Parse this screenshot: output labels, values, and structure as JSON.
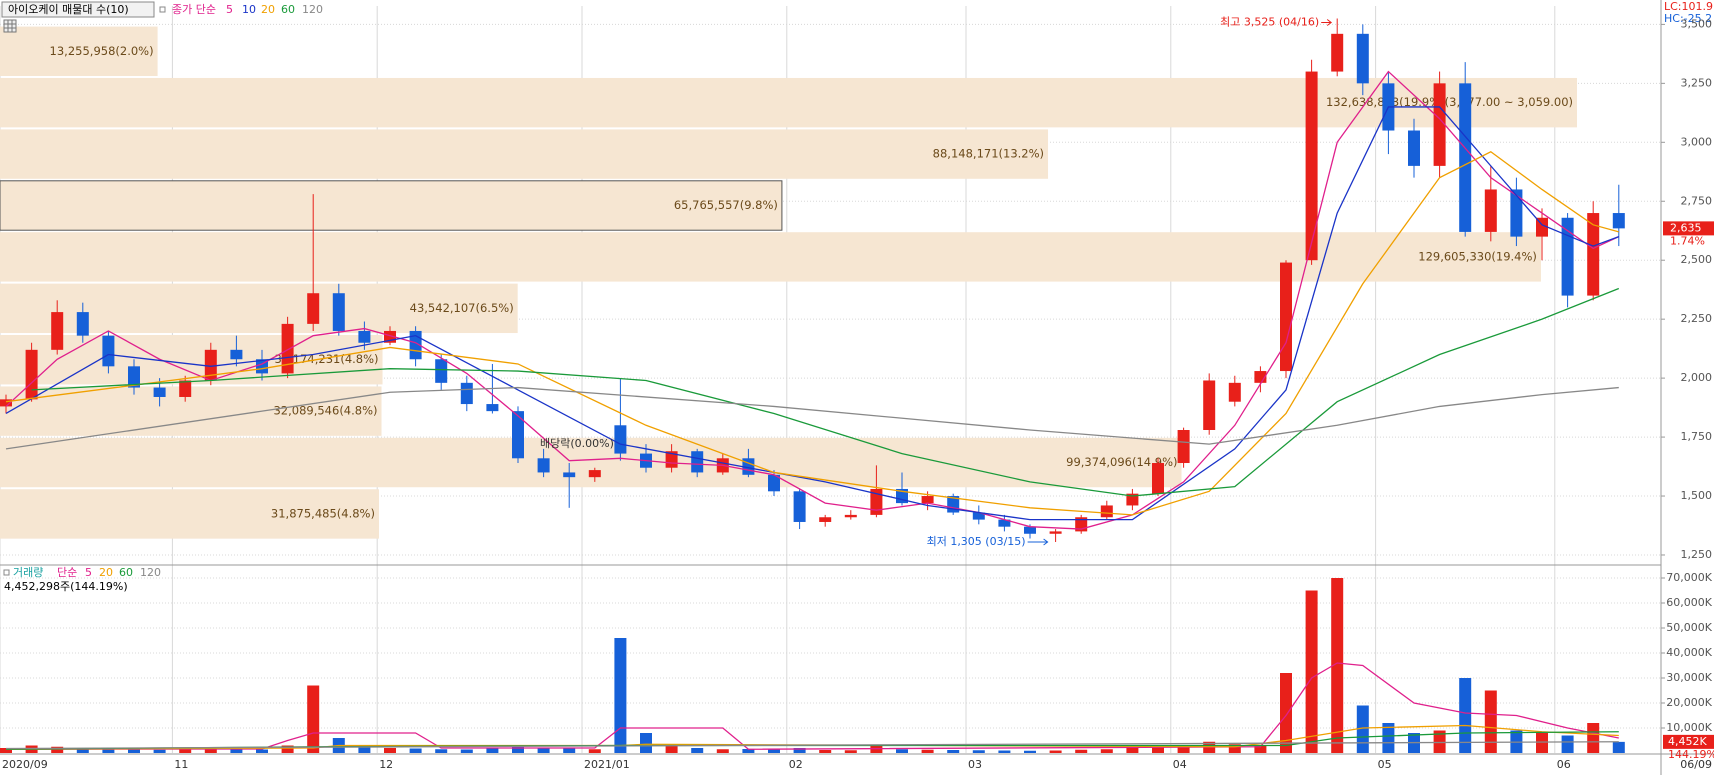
{
  "chart_data": [
    {
      "type": "candlestick",
      "title": "아이오케이 매물대 수(10)",
      "legend_title": "종가 단순",
      "up_color": "#e8201a",
      "down_color": "#1660d8",
      "ylim": [
        1216,
        3578
      ],
      "yticks": [
        {
          "value": 1250,
          "label": "1,250"
        },
        {
          "value": 1500,
          "label": "1,500"
        },
        {
          "value": 1750,
          "label": "1,750"
        },
        {
          "value": 2000,
          "label": "2,000"
        },
        {
          "value": 2250,
          "label": "2,250"
        },
        {
          "value": 2500,
          "label": "2,500"
        },
        {
          "value": 2750,
          "label": "2,750"
        },
        {
          "value": 3000,
          "label": "3,000"
        },
        {
          "value": 3250,
          "label": "3,250"
        },
        {
          "value": 3500,
          "label": "3,500"
        }
      ],
      "grid": true,
      "ohlc": [
        [
          1880,
          1930,
          1850,
          1910
        ],
        [
          1910,
          2150,
          1900,
          2120
        ],
        [
          2120,
          2330,
          2100,
          2280
        ],
        [
          2280,
          2320,
          2150,
          2180
        ],
        [
          2180,
          2200,
          2020,
          2050
        ],
        [
          2050,
          2080,
          1930,
          1960
        ],
        [
          1960,
          2000,
          1880,
          1920
        ],
        [
          1920,
          2010,
          1900,
          1990
        ],
        [
          1990,
          2150,
          1970,
          2120
        ],
        [
          2120,
          2180,
          2050,
          2080
        ],
        [
          2080,
          2120,
          1990,
          2020
        ],
        [
          2020,
          2260,
          2000,
          2230
        ],
        [
          2230,
          2780,
          2200,
          2360
        ],
        [
          2360,
          2400,
          2180,
          2200
        ],
        [
          2200,
          2240,
          2120,
          2150
        ],
        [
          2150,
          2220,
          2140,
          2200
        ],
        [
          2200,
          2220,
          2050,
          2080
        ],
        [
          2080,
          2100,
          1950,
          1980
        ],
        [
          1980,
          2010,
          1860,
          1890
        ],
        [
          1890,
          2060,
          1850,
          1860
        ],
        [
          1860,
          1880,
          1640,
          1660
        ],
        [
          1660,
          1700,
          1580,
          1600
        ],
        [
          1600,
          1640,
          1450,
          1580
        ],
        [
          1580,
          1620,
          1560,
          1610
        ],
        [
          1800,
          2000,
          1650,
          1680
        ],
        [
          1680,
          1720,
          1600,
          1620
        ],
        [
          1620,
          1720,
          1600,
          1690
        ],
        [
          1690,
          1700,
          1580,
          1600
        ],
        [
          1600,
          1680,
          1590,
          1660
        ],
        [
          1660,
          1700,
          1580,
          1590
        ],
        [
          1590,
          1610,
          1500,
          1520
        ],
        [
          1520,
          1530,
          1360,
          1390
        ],
        [
          1390,
          1420,
          1370,
          1410
        ],
        [
          1410,
          1440,
          1400,
          1420
        ],
        [
          1420,
          1630,
          1410,
          1530
        ],
        [
          1530,
          1600,
          1460,
          1470
        ],
        [
          1470,
          1520,
          1440,
          1500
        ],
        [
          1500,
          1510,
          1420,
          1430
        ],
        [
          1430,
          1460,
          1380,
          1400
        ],
        [
          1400,
          1420,
          1350,
          1370
        ],
        [
          1370,
          1380,
          1320,
          1340
        ],
        [
          1340,
          1360,
          1305,
          1350
        ],
        [
          1350,
          1420,
          1340,
          1410
        ],
        [
          1410,
          1480,
          1400,
          1460
        ],
        [
          1460,
          1530,
          1440,
          1510
        ],
        [
          1510,
          1660,
          1500,
          1640
        ],
        [
          1640,
          1790,
          1620,
          1780
        ],
        [
          1780,
          2020,
          1760,
          1990
        ],
        [
          1900,
          2010,
          1880,
          1980
        ],
        [
          1980,
          2050,
          1940,
          2030
        ],
        [
          2030,
          2500,
          2000,
          2490
        ],
        [
          2500,
          3350,
          2480,
          3300
        ],
        [
          3300,
          3525,
          3280,
          3460
        ],
        [
          3460,
          3500,
          3200,
          3250
        ],
        [
          3250,
          3300,
          2950,
          3050
        ],
        [
          3050,
          3100,
          2850,
          2900
        ],
        [
          2900,
          3300,
          2850,
          3250
        ],
        [
          3250,
          3340,
          2600,
          2620
        ],
        [
          2620,
          2900,
          2580,
          2800
        ],
        [
          2800,
          2850,
          2560,
          2600
        ],
        [
          2600,
          2720,
          2500,
          2680
        ],
        [
          2680,
          2700,
          2300,
          2350
        ],
        [
          2350,
          2750,
          2330,
          2700
        ],
        [
          2700,
          2820,
          2560,
          2635
        ]
      ],
      "series": [
        {
          "name": "5",
          "color": "#e0208c",
          "x": [
            0,
            2,
            4,
            6,
            8,
            10,
            12,
            14,
            16,
            18,
            20,
            22,
            24,
            26,
            28,
            30,
            32,
            34,
            36,
            38,
            40,
            42,
            44,
            46,
            48,
            50,
            52,
            54,
            56,
            58,
            60,
            62,
            63
          ],
          "values": [
            1880,
            2080,
            2200,
            2080,
            1990,
            2060,
            2180,
            2210,
            2150,
            2020,
            1840,
            1650,
            1660,
            1640,
            1630,
            1590,
            1470,
            1440,
            1470,
            1430,
            1370,
            1360,
            1420,
            1560,
            1800,
            2150,
            3000,
            3300,
            3100,
            2850,
            2700,
            2550,
            2600
          ]
        },
        {
          "name": "10",
          "color": "#1a34c8",
          "x": [
            0,
            4,
            8,
            12,
            16,
            20,
            24,
            28,
            32,
            36,
            40,
            44,
            48,
            50,
            52,
            54,
            56,
            58,
            60,
            62,
            63
          ],
          "values": [
            1850,
            2100,
            2050,
            2100,
            2180,
            1950,
            1720,
            1640,
            1560,
            1460,
            1400,
            1400,
            1700,
            1950,
            2700,
            3150,
            3150,
            2900,
            2650,
            2560,
            2600
          ]
        },
        {
          "name": "20",
          "color": "#f0a000",
          "x": [
            0,
            5,
            10,
            15,
            20,
            25,
            30,
            35,
            40,
            44,
            47,
            50,
            53,
            56,
            58,
            60,
            62,
            63
          ],
          "values": [
            1900,
            1970,
            2040,
            2130,
            2060,
            1800,
            1600,
            1520,
            1450,
            1420,
            1520,
            1850,
            2400,
            2850,
            2960,
            2800,
            2650,
            2620
          ]
        },
        {
          "name": "60",
          "color": "#1a9a3a",
          "x": [
            1,
            8,
            15,
            20,
            25,
            30,
            35,
            40,
            44,
            48,
            52,
            56,
            60,
            63
          ],
          "values": [
            1950,
            1990,
            2040,
            2030,
            1990,
            1850,
            1680,
            1560,
            1500,
            1540,
            1900,
            2100,
            2250,
            2380
          ]
        },
        {
          "name": "120",
          "color": "#888888",
          "x": [
            0,
            10,
            15,
            20,
            30,
            40,
            47,
            52,
            56,
            60,
            63
          ],
          "values": [
            1700,
            1860,
            1940,
            1960,
            1880,
            1780,
            1720,
            1800,
            1880,
            1930,
            1960
          ]
        }
      ],
      "volume_profile": [
        {
          "high": 3495,
          "low": 3277,
          "volume": 13255958,
          "label": "13,255,958(2.0%)"
        },
        {
          "high": 3277,
          "low": 3059,
          "volume": 132638813,
          "label": "132,638,813(19.9%)(3,277.00 ~ 3,059.00)"
        },
        {
          "high": 3059,
          "low": 2841,
          "volume": 88148171,
          "label": "88,148,171(13.2%)"
        },
        {
          "high": 2841,
          "low": 2623,
          "volume": 65765557,
          "label": "65,765,557(9.8%)",
          "highlighted": true
        },
        {
          "high": 2623,
          "low": 2405,
          "volume": 129605330,
          "label": "129,605,330(19.4%)"
        },
        {
          "high": 2405,
          "low": 2187,
          "volume": 43542107,
          "label": "43,542,107(6.5%)"
        },
        {
          "high": 2187,
          "low": 1969,
          "volume": 32174231,
          "label": "32,174,231(4.8%)"
        },
        {
          "high": 1969,
          "low": 1751,
          "volume": 32089546,
          "label": "32,089,546(4.8%)"
        },
        {
          "high": 1751,
          "low": 1533,
          "volume": 99374096,
          "label": "99,374,096(14.9%)"
        },
        {
          "high": 1533,
          "low": 1315,
          "volume": 31875485,
          "label": "31,875,485(4.8%)"
        }
      ],
      "high_annotation": "최고 3,525 (04/16)",
      "low_annotation": "최저 1,305 (03/15)",
      "ex_dividend": "배당락(0.00%)",
      "price_marker": {
        "value": 2635,
        "label": "2,635",
        "change": "1.74%"
      },
      "lc_label": "LC:101.9",
      "hc_label": "HC:-25.2"
    },
    {
      "type": "bar",
      "name": "거래량",
      "legend_title": "단순",
      "info": "4,452,298주(144.19%)",
      "categories": [
        "2020/09",
        null,
        null,
        null,
        null,
        null,
        null,
        "11",
        null,
        null,
        null,
        null,
        null,
        null,
        null,
        "12",
        null,
        null,
        null,
        null,
        null,
        null,
        null,
        "2021/01",
        null,
        null,
        null,
        null,
        null,
        null,
        null,
        "02",
        null,
        null,
        null,
        null,
        null,
        null,
        "03",
        null,
        null,
        null,
        null,
        null,
        null,
        null,
        "04",
        null,
        null,
        null,
        null,
        null,
        null,
        null,
        "05",
        null,
        null,
        null,
        null,
        null,
        null,
        "06",
        null,
        null
      ],
      "date_label": "06/09",
      "ylim": [
        0,
        74000
      ],
      "yticks": [
        {
          "value": 10000,
          "label": "10,000K"
        },
        {
          "value": 20000,
          "label": "20,000K"
        },
        {
          "value": 30000,
          "label": "30,000K"
        },
        {
          "value": 40000,
          "label": "40,000K"
        },
        {
          "value": 50000,
          "label": "50,000K"
        },
        {
          "value": 60000,
          "label": "60,000K"
        },
        {
          "value": 70000,
          "label": "70,000K"
        }
      ],
      "values": [
        2000,
        3000,
        2500,
        1800,
        1500,
        1400,
        1300,
        1500,
        2200,
        1600,
        1400,
        3000,
        27000,
        6000,
        3000,
        2000,
        1800,
        1500,
        1400,
        2200,
        2500,
        1800,
        2000,
        1500,
        46000,
        8000,
        3000,
        2000,
        1500,
        1600,
        1400,
        2000,
        1200,
        1100,
        2800,
        1500,
        1300,
        1200,
        1100,
        1000,
        900,
        1000,
        1300,
        1500,
        2000,
        2500,
        3000,
        4500,
        3500,
        3000,
        32000,
        65000,
        70000,
        19000,
        12000,
        8000,
        9000,
        30000,
        25000,
        9000,
        8000,
        7000,
        12000,
        4452
      ],
      "series": [
        {
          "name": "5",
          "color": "#e0208c",
          "x": [
            0,
            10,
            11,
            12,
            16,
            17,
            23,
            24,
            28,
            29,
            49,
            50,
            51,
            52,
            53,
            55,
            57,
            59,
            61,
            63
          ],
          "values": [
            1500,
            1600,
            5000,
            8000,
            8000,
            2000,
            2000,
            10000,
            10000,
            1500,
            2500,
            15000,
            30000,
            36000,
            35000,
            20000,
            16000,
            15000,
            10000,
            6000
          ]
        },
        {
          "name": "20",
          "color": "#f0a000",
          "x": [
            0,
            12,
            13,
            24,
            25,
            48,
            50,
            53,
            57,
            60,
            63
          ],
          "values": [
            1500,
            2000,
            3000,
            3000,
            3500,
            2500,
            5000,
            10000,
            11000,
            8500,
            7000
          ]
        },
        {
          "name": "60",
          "color": "#1a9a3a",
          "x": [
            0,
            12,
            24,
            50,
            52,
            57,
            63
          ],
          "values": [
            1500,
            2500,
            3000,
            3000,
            6000,
            8000,
            8500
          ]
        },
        {
          "name": "120",
          "color": "#888888",
          "x": [
            0,
            63
          ],
          "values": [
            1800,
            4500
          ]
        }
      ],
      "volume_marker": {
        "value": 4452,
        "label": "4,452K",
        "ratio": "144.19%"
      }
    }
  ]
}
